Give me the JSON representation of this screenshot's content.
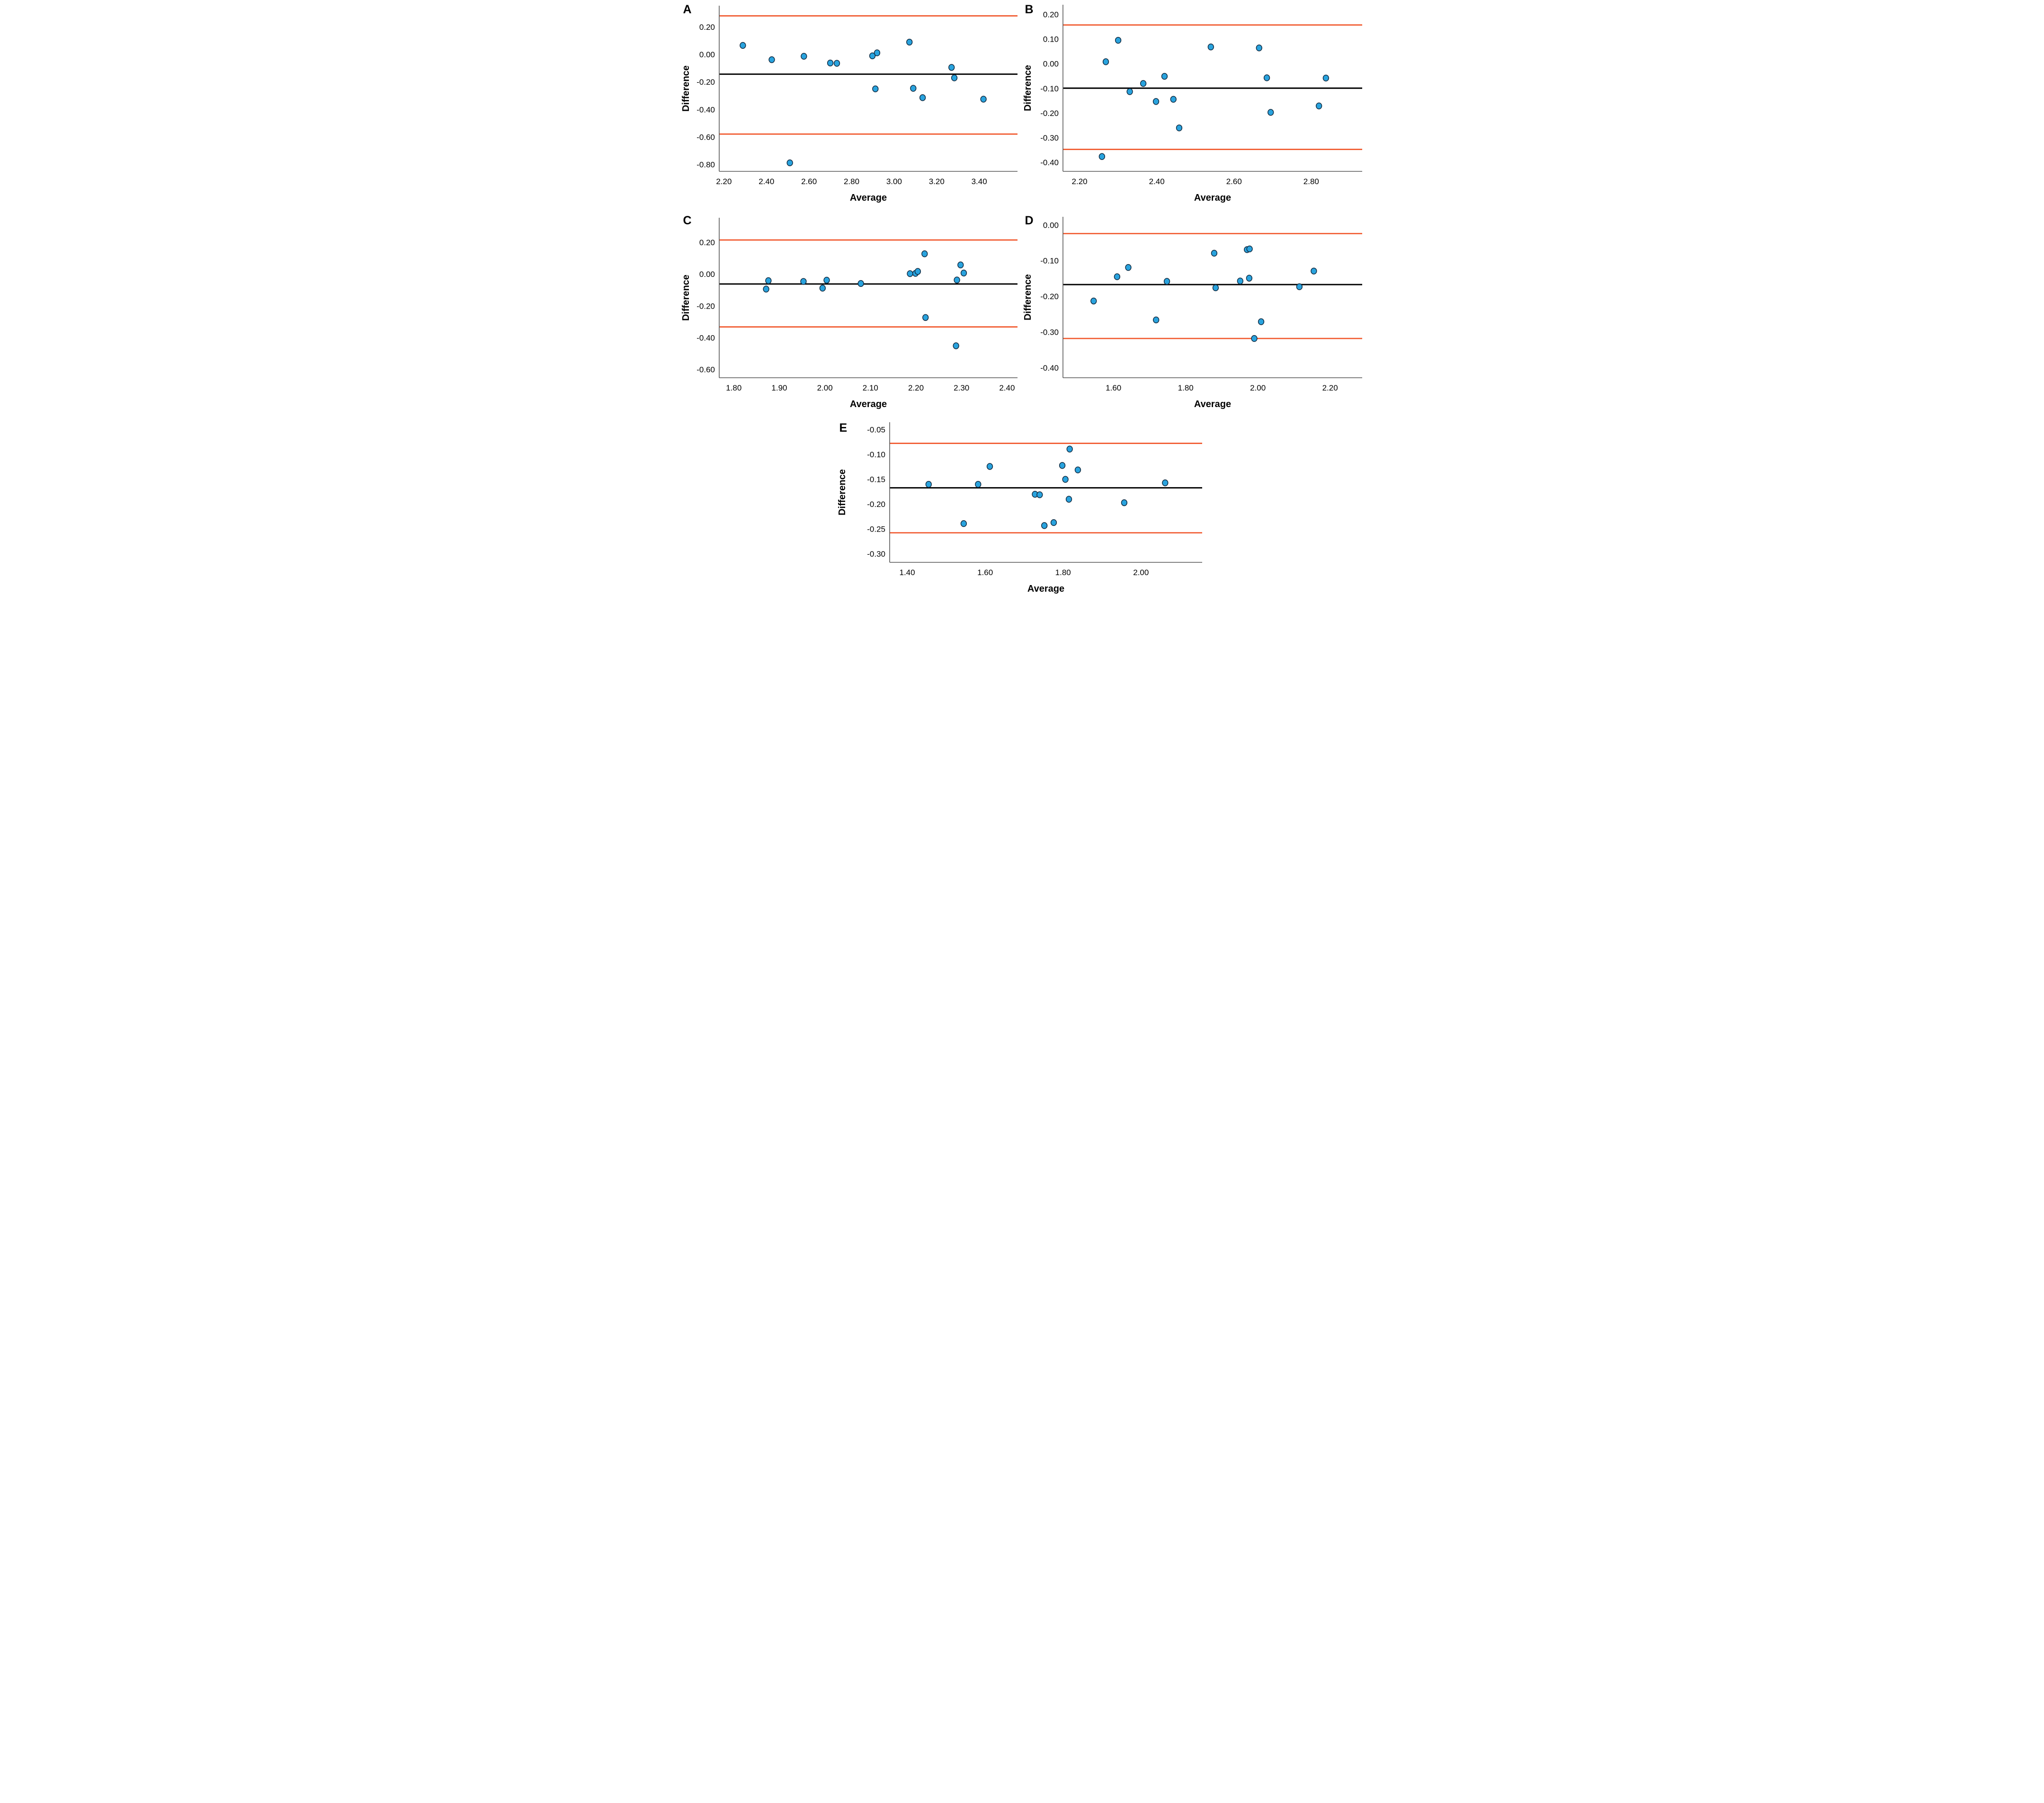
{
  "figure_title": "",
  "colors": {
    "background": "#ffffff",
    "point_fill": "#29A3DE",
    "point_stroke": "#10293f",
    "mean_line": "#000000",
    "loa_line": "#F1592E",
    "spine": "#595959",
    "text": "#000000"
  },
  "chart_data": [
    {
      "label": "A",
      "type": "scatter",
      "xlabel": "Average",
      "ylabel": "Difference",
      "xlim": [
        2.178,
        3.58
      ],
      "ylim": [
        -0.85,
        0.355
      ],
      "xticks": {
        "values": [
          2.2,
          2.4,
          2.6,
          2.8,
          3.0,
          3.2,
          3.4
        ],
        "labels": [
          "2.20",
          "2.40",
          "2.60",
          "2.80",
          "3.00",
          "3.20",
          "3.40"
        ]
      },
      "yticks": {
        "values": [
          0.2,
          0.0,
          -0.2,
          -0.4,
          -0.6,
          -0.8
        ],
        "labels": [
          "0.20",
          "0.00",
          "-0.20",
          "-0.40",
          "-0.60",
          "-0.80"
        ]
      },
      "mean_line": -0.143,
      "upper_loa": 0.281,
      "lower_loa": -0.579,
      "points": [
        [
          2.289,
          0.066
        ],
        [
          2.425,
          -0.038
        ],
        [
          2.576,
          -0.013
        ],
        [
          2.7,
          -0.062
        ],
        [
          2.731,
          -0.064
        ],
        [
          2.898,
          -0.01
        ],
        [
          2.92,
          0.012
        ],
        [
          3.072,
          0.09
        ],
        [
          2.912,
          -0.25
        ],
        [
          3.09,
          -0.246
        ],
        [
          3.134,
          -0.314
        ],
        [
          3.27,
          -0.094
        ],
        [
          3.283,
          -0.17
        ],
        [
          3.42,
          -0.325
        ],
        [
          2.51,
          -0.788
        ]
      ]
    },
    {
      "label": "B",
      "type": "scatter",
      "xlabel": "Average",
      "ylabel": "Difference",
      "xlim": [
        2.157,
        2.932
      ],
      "ylim": [
        -0.436,
        0.239
      ],
      "xticks": {
        "values": [
          2.2,
          2.4,
          2.6,
          2.8
        ],
        "labels": [
          "2.20",
          "2.40",
          "2.60",
          "2.80"
        ]
      },
      "yticks": {
        "values": [
          0.2,
          0.1,
          0.0,
          -0.1,
          -0.2,
          -0.3,
          -0.4
        ],
        "labels": [
          "0.20",
          "0.10",
          "0.00",
          "-0.10",
          "-0.20",
          "-0.30",
          "-0.40"
        ]
      },
      "mean_line": -0.099,
      "upper_loa": 0.157,
      "lower_loa": -0.347,
      "points": [
        [
          2.3,
          0.095
        ],
        [
          2.268,
          0.008
        ],
        [
          2.54,
          0.068
        ],
        [
          2.665,
          0.064
        ],
        [
          2.42,
          -0.051
        ],
        [
          2.365,
          -0.08
        ],
        [
          2.33,
          -0.113
        ],
        [
          2.398,
          -0.153
        ],
        [
          2.443,
          -0.144
        ],
        [
          2.685,
          -0.057
        ],
        [
          2.838,
          -0.058
        ],
        [
          2.695,
          -0.197
        ],
        [
          2.82,
          -0.171
        ],
        [
          2.458,
          -0.26
        ],
        [
          2.258,
          -0.376
        ]
      ]
    },
    {
      "label": "C",
      "type": "scatter",
      "xlabel": "Average",
      "ylabel": "Difference",
      "xlim": [
        1.768,
        2.423
      ],
      "ylim": [
        -0.652,
        0.355
      ],
      "xticks": {
        "values": [
          1.8,
          1.9,
          2.0,
          2.1,
          2.2,
          2.3,
          2.4
        ],
        "labels": [
          "1.80",
          "1.90",
          "2.00",
          "2.10",
          "2.20",
          "2.30",
          "2.40"
        ]
      },
      "yticks": {
        "values": [
          0.2,
          0.0,
          -0.2,
          -0.4,
          -0.6
        ],
        "labels": [
          "0.20",
          "0.00",
          "-0.20",
          "-0.40",
          "-0.60"
        ]
      },
      "mean_line": -0.062,
      "upper_loa": 0.215,
      "lower_loa": -0.332,
      "points": [
        [
          1.876,
          -0.041
        ],
        [
          1.871,
          -0.094
        ],
        [
          1.953,
          -0.046
        ],
        [
          1.995,
          -0.088
        ],
        [
          2.004,
          -0.038
        ],
        [
          2.079,
          -0.059
        ],
        [
          2.187,
          0.003
        ],
        [
          2.199,
          0.005
        ],
        [
          2.204,
          0.017
        ],
        [
          2.219,
          0.128
        ],
        [
          2.298,
          0.058
        ],
        [
          2.305,
          0.007
        ],
        [
          2.29,
          -0.037
        ],
        [
          2.221,
          -0.273
        ],
        [
          2.288,
          -0.451
        ]
      ]
    },
    {
      "label": "D",
      "type": "scatter",
      "xlabel": "Average",
      "ylabel": "Difference",
      "xlim": [
        1.46,
        2.289
      ],
      "ylim": [
        -0.428,
        0.023
      ],
      "xticks": {
        "values": [
          1.6,
          1.8,
          2.0,
          2.2
        ],
        "labels": [
          "1.60",
          "1.80",
          "2.00",
          "2.20"
        ]
      },
      "yticks": {
        "values": [
          0.0,
          -0.1,
          -0.2,
          -0.3,
          -0.4
        ],
        "labels": [
          "0.00",
          "-0.10",
          "-0.20",
          "-0.30",
          "-0.40"
        ]
      },
      "mean_line": -0.167,
      "upper_loa": -0.024,
      "lower_loa": -0.318,
      "points": [
        [
          1.545,
          -0.213
        ],
        [
          1.61,
          -0.145
        ],
        [
          1.641,
          -0.119
        ],
        [
          1.718,
          -0.266
        ],
        [
          1.748,
          -0.158
        ],
        [
          1.879,
          -0.079
        ],
        [
          1.883,
          -0.176
        ],
        [
          1.951,
          -0.157
        ],
        [
          1.97,
          -0.069
        ],
        [
          1.977,
          -0.067
        ],
        [
          1.976,
          -0.149
        ],
        [
          1.99,
          -0.318
        ],
        [
          2.009,
          -0.271
        ],
        [
          2.115,
          -0.173
        ],
        [
          2.155,
          -0.129
        ]
      ]
    },
    {
      "label": "E",
      "type": "scatter",
      "xlabel": "Average",
      "ylabel": "Difference",
      "xlim": [
        1.355,
        2.157
      ],
      "ylim": [
        -0.317,
        -0.035
      ],
      "xticks": {
        "values": [
          1.4,
          1.6,
          1.8,
          2.0
        ],
        "labels": [
          "1.40",
          "1.60",
          "1.80",
          "2.00"
        ]
      },
      "yticks": {
        "values": [
          -0.05,
          -0.1,
          -0.15,
          -0.2,
          -0.25,
          -0.3
        ],
        "labels": [
          "-0.05",
          "-0.10",
          "-0.15",
          "-0.20",
          "-0.25",
          "-0.30"
        ]
      },
      "mean_line": -0.167,
      "upper_loa": -0.0775,
      "lower_loa": -0.2575,
      "points": [
        [
          1.455,
          -0.16
        ],
        [
          1.545,
          -0.239
        ],
        [
          1.582,
          -0.16
        ],
        [
          1.612,
          -0.124
        ],
        [
          1.728,
          -0.18
        ],
        [
          1.74,
          -0.181
        ],
        [
          1.752,
          -0.243
        ],
        [
          1.776,
          -0.237
        ],
        [
          1.798,
          -0.122
        ],
        [
          1.806,
          -0.15
        ],
        [
          1.817,
          -0.089
        ],
        [
          1.838,
          -0.131
        ],
        [
          1.815,
          -0.19
        ],
        [
          1.957,
          -0.197
        ],
        [
          2.062,
          -0.157
        ]
      ]
    }
  ]
}
